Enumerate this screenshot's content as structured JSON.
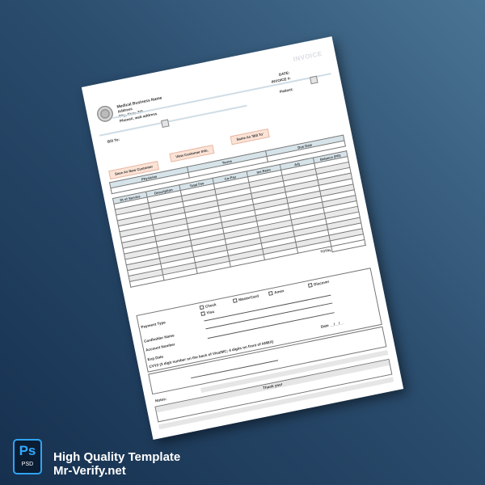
{
  "invoice": {
    "title": "INVOICE",
    "business_name": "Medical Business Name",
    "address": "Address",
    "city": "City, State ZIP",
    "phone": "Phone#, web address",
    "date_label": "DATE:",
    "invoice_no_label": "INVOICE #:",
    "patient_label": "Patient:",
    "bill_to_label": "Bill To:",
    "buttons": {
      "save_new": "Save As New Customer",
      "view_info": "View Customer Info.",
      "same_as_bill": "Same As 'Bill To'"
    },
    "info_headers": [
      "Physician",
      "Terms",
      "Due Date"
    ],
    "columns": [
      "Dt of Service",
      "Description",
      "Total Fee",
      "Co-Pay",
      "Ins Reim",
      "Adj",
      "Balance (PR)"
    ],
    "total_label": "TOTAL",
    "total_value": "-",
    "payment": {
      "payment_type_label": "Payment Type",
      "options": [
        "Check",
        "Visa",
        "MasterCard",
        "Amex",
        "Discover"
      ],
      "cardholder_label": "Cardholder Name",
      "account_label": "Account Number",
      "exp_label": "Exp Date",
      "cvv_label": "CVV2 (3 digit number on the back of Visa/MC; 4 digits on front of AMEX)",
      "date_label": "Date",
      "date_value": "__/__/__"
    },
    "notes_label": "Notes:",
    "thank_you": "Thank you!"
  },
  "promo": {
    "badge_main": "Ps",
    "badge_sub": "PSD",
    "line1": "High Quality Template",
    "line2": "Mr-Verify.net",
    "accent": "#31a8ff"
  }
}
